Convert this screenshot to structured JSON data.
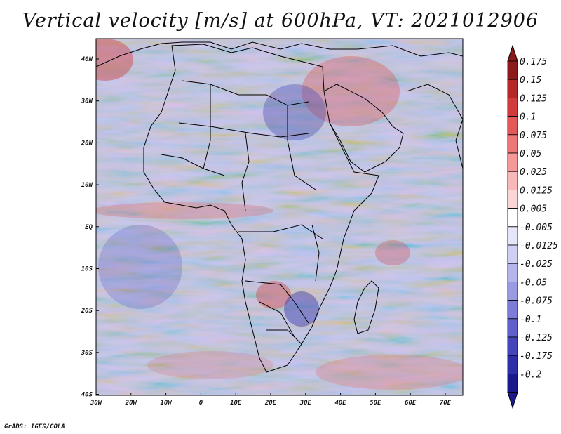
{
  "title": "Vertical velocity [m/s] at 600hPa, VT: 2021012906",
  "credit": "GrADS: IGES/COLA",
  "map": {
    "region": "Africa",
    "lat_labels": [
      "40N",
      "30N",
      "20N",
      "10N",
      "EQ",
      "10S",
      "20S",
      "30S",
      "40S"
    ],
    "lon_labels": [
      "30W",
      "20W",
      "10W",
      "0",
      "10E",
      "20E",
      "30E",
      "40E",
      "50E",
      "60E",
      "70E"
    ],
    "lat_range": [
      -40,
      45
    ],
    "lon_range": [
      -30,
      75
    ]
  },
  "colorbar": {
    "labels": [
      "0.175",
      "0.15",
      "0.125",
      "0.1",
      "0.075",
      "0.05",
      "0.025",
      "0.0125",
      "0.005",
      "-0.005",
      "-0.0125",
      "-0.025",
      "-0.05",
      "-0.075",
      "-0.1",
      "-0.125",
      "-0.175",
      "-0.2"
    ],
    "colors": [
      "#8c1a1a",
      "#b52828",
      "#d23b3b",
      "#e35858",
      "#ee7878",
      "#f49898",
      "#f8b8b8",
      "#fbd6d6",
      "#ffffff",
      "#e6e6fa",
      "#cfcff3",
      "#b5b5ec",
      "#9a9ae3",
      "#7d7dd9",
      "#6060cc",
      "#4545bb",
      "#2e2ea8",
      "#1a1a8c"
    ]
  }
}
